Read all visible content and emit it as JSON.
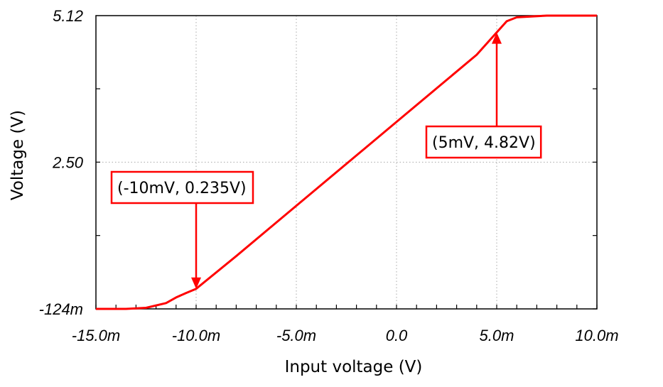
{
  "chart_data": {
    "type": "line",
    "xlabel": "Input voltage (V)",
    "ylabel": "Voltage (V)",
    "xlim": [
      -0.015,
      0.01
    ],
    "ylim": [
      -0.124,
      5.12
    ],
    "x_ticks": [
      -0.015,
      -0.01,
      -0.005,
      0.0,
      0.005,
      0.01
    ],
    "x_tick_labels": [
      "-15.0m",
      "-10.0m",
      "-5.0m",
      "0.0",
      "5.0m",
      "10.0m"
    ],
    "y_ticks": [
      -0.124,
      2.5,
      5.12
    ],
    "y_tick_labels": [
      "-124m",
      "2.50",
      "5.12"
    ],
    "grid": true,
    "line_color": "#ff0000",
    "series": [
      {
        "x": [
          -0.015,
          -0.0135,
          -0.0125,
          -0.0115,
          -0.011,
          -0.0105,
          -0.01,
          -0.008,
          -0.006,
          -0.004,
          -0.002,
          0.0,
          0.002,
          0.004,
          0.005,
          0.0055,
          0.006,
          0.0075,
          0.01
        ],
        "y": [
          -0.124,
          -0.124,
          -0.105,
          -0.02,
          0.08,
          0.16,
          0.235,
          0.82,
          1.42,
          2.02,
          2.62,
          3.22,
          3.82,
          4.42,
          4.82,
          5.02,
          5.09,
          5.12,
          5.12
        ]
      }
    ],
    "annotations": [
      {
        "text": "(-10mV, 0.235V)",
        "x": -0.01,
        "y": 0.235,
        "arrow": "down"
      },
      {
        "text": "(5mV, 4.82V)",
        "x": 0.005,
        "y": 4.82,
        "arrow": "up"
      }
    ]
  }
}
